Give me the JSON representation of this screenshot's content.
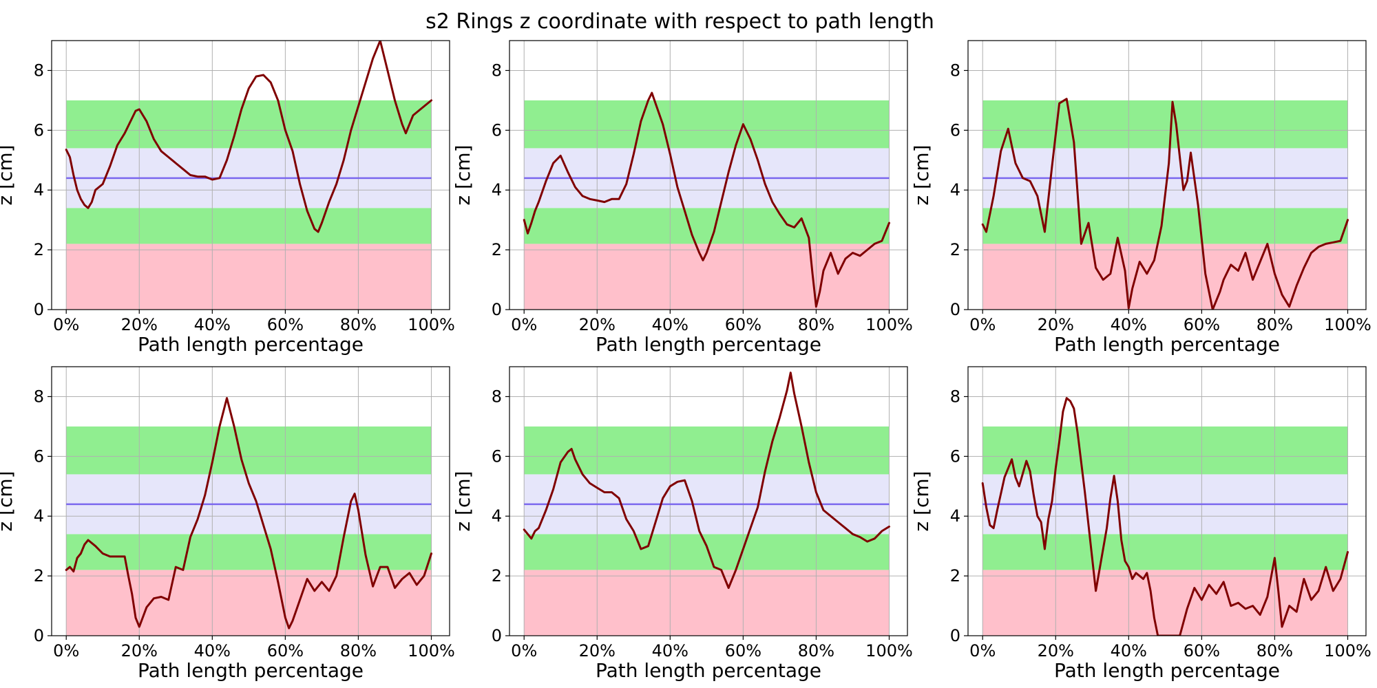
{
  "figure": {
    "title": "s2 Rings z coordinate with respect to path length"
  },
  "colors": {
    "pink_band": "#ffc0cb",
    "green_band": "#90ee90",
    "lavender_band": "#e6e6fa",
    "target_line": "#7b68ee",
    "series_line": "#800000",
    "grid": "#b0b0b0"
  },
  "chart_data": [
    {
      "type": "line",
      "title": "",
      "xlabel": "Path length percentage",
      "ylabel": "z [cm]",
      "xlim": [
        -4,
        105
      ],
      "ylim": [
        0,
        9
      ],
      "x_ticks": [
        "0%",
        "20%",
        "40%",
        "60%",
        "80%",
        "100%"
      ],
      "y_ticks": [
        "0",
        "2",
        "4",
        "6",
        "8"
      ],
      "grid": true,
      "bands": [
        {
          "from": 0,
          "to": 2.2,
          "color": "pink"
        },
        {
          "from": 2.2,
          "to": 3.4,
          "color": "green"
        },
        {
          "from": 3.4,
          "to": 5.4,
          "color": "lavender"
        },
        {
          "from": 5.4,
          "to": 7.0,
          "color": "green"
        }
      ],
      "target_line": 4.4,
      "series": [
        {
          "x": [
            0,
            1,
            2,
            3,
            4,
            5,
            6,
            7,
            8,
            10,
            12,
            14,
            16,
            18,
            19,
            20,
            22,
            24,
            26,
            28,
            30,
            32,
            34,
            36,
            38,
            40,
            42,
            44,
            46,
            48,
            50,
            52,
            54,
            56,
            58,
            60,
            62,
            64,
            66,
            68,
            69,
            70,
            72,
            74,
            76,
            78,
            80,
            82,
            84,
            86,
            88,
            90,
            92,
            93,
            95,
            97,
            100
          ],
          "y": [
            5.35,
            5.1,
            4.5,
            4.0,
            3.7,
            3.5,
            3.4,
            3.6,
            4.0,
            4.2,
            4.8,
            5.5,
            5.9,
            6.4,
            6.65,
            6.7,
            6.3,
            5.7,
            5.3,
            5.1,
            4.9,
            4.7,
            4.5,
            4.45,
            4.45,
            4.35,
            4.4,
            5.0,
            5.8,
            6.7,
            7.4,
            7.8,
            7.85,
            7.6,
            7.0,
            6.0,
            5.3,
            4.2,
            3.3,
            2.7,
            2.6,
            2.9,
            3.6,
            4.2,
            5.0,
            6.0,
            6.8,
            7.6,
            8.4,
            9.0,
            8.0,
            7.0,
            6.2,
            5.9,
            6.5,
            6.7,
            7.0
          ]
        }
      ]
    },
    {
      "type": "line",
      "title": "",
      "xlabel": "Path length percentage",
      "ylabel": "z [cm]",
      "xlim": [
        -4,
        105
      ],
      "ylim": [
        0,
        9
      ],
      "x_ticks": [
        "0%",
        "20%",
        "40%",
        "60%",
        "80%",
        "100%"
      ],
      "y_ticks": [
        "0",
        "2",
        "4",
        "6",
        "8"
      ],
      "grid": true,
      "bands": [
        {
          "from": 0,
          "to": 2.2,
          "color": "pink"
        },
        {
          "from": 2.2,
          "to": 3.4,
          "color": "green"
        },
        {
          "from": 3.4,
          "to": 5.4,
          "color": "lavender"
        },
        {
          "from": 5.4,
          "to": 7.0,
          "color": "green"
        }
      ],
      "target_line": 4.4,
      "series": [
        {
          "x": [
            0,
            1,
            2,
            3,
            4,
            6,
            8,
            10,
            12,
            14,
            16,
            18,
            20,
            22,
            24,
            26,
            28,
            30,
            32,
            34,
            35,
            36,
            38,
            40,
            42,
            44,
            46,
            48,
            49,
            50,
            52,
            54,
            56,
            58,
            60,
            62,
            64,
            66,
            68,
            70,
            72,
            74,
            76,
            78,
            79,
            80,
            81,
            82,
            84,
            86,
            88,
            90,
            92,
            94,
            96,
            98,
            100
          ],
          "y": [
            3.0,
            2.55,
            2.9,
            3.3,
            3.6,
            4.3,
            4.9,
            5.15,
            4.6,
            4.1,
            3.8,
            3.7,
            3.65,
            3.6,
            3.7,
            3.7,
            4.2,
            5.2,
            6.3,
            7.0,
            7.25,
            6.9,
            6.2,
            5.2,
            4.1,
            3.3,
            2.5,
            1.9,
            1.65,
            1.9,
            2.6,
            3.6,
            4.6,
            5.5,
            6.2,
            5.7,
            5.0,
            4.2,
            3.6,
            3.2,
            2.85,
            2.75,
            3.05,
            2.4,
            1.2,
            0.1,
            0.6,
            1.3,
            1.9,
            1.2,
            1.7,
            1.9,
            1.8,
            2.0,
            2.2,
            2.3,
            2.9
          ]
        }
      ]
    },
    {
      "type": "line",
      "title": "",
      "xlabel": "Path length percentage",
      "ylabel": "z [cm]",
      "xlim": [
        -4,
        105
      ],
      "ylim": [
        0,
        9
      ],
      "x_ticks": [
        "0%",
        "20%",
        "40%",
        "60%",
        "80%",
        "100%"
      ],
      "y_ticks": [
        "0",
        "2",
        "4",
        "6",
        "8"
      ],
      "grid": true,
      "bands": [
        {
          "from": 0,
          "to": 2.2,
          "color": "pink"
        },
        {
          "from": 2.2,
          "to": 3.4,
          "color": "green"
        },
        {
          "from": 3.4,
          "to": 5.4,
          "color": "lavender"
        },
        {
          "from": 5.4,
          "to": 7.0,
          "color": "green"
        }
      ],
      "target_line": 4.4,
      "series": [
        {
          "x": [
            0,
            1,
            2,
            3,
            5,
            7,
            9,
            11,
            13,
            15,
            17,
            19,
            21,
            23,
            25,
            27,
            29,
            31,
            33,
            35,
            37,
            39,
            40,
            41,
            43,
            45,
            47,
            49,
            51,
            52,
            53,
            55,
            56,
            57,
            59,
            61,
            63,
            65,
            66,
            68,
            70,
            72,
            74,
            76,
            78,
            80,
            82,
            84,
            86,
            88,
            90,
            92,
            94,
            96,
            98,
            100
          ],
          "y": [
            2.85,
            2.6,
            3.2,
            3.8,
            5.3,
            6.05,
            4.9,
            4.4,
            4.3,
            3.8,
            2.6,
            4.8,
            6.9,
            7.05,
            5.6,
            2.2,
            2.9,
            1.4,
            1.0,
            1.2,
            2.4,
            1.3,
            0.05,
            0.7,
            1.6,
            1.2,
            1.65,
            2.8,
            4.9,
            6.95,
            6.2,
            4.0,
            4.3,
            5.25,
            3.5,
            1.2,
            0.0,
            0.6,
            1.0,
            1.5,
            1.3,
            1.9,
            1.0,
            1.6,
            2.2,
            1.2,
            0.5,
            0.1,
            0.8,
            1.4,
            1.9,
            2.1,
            2.2,
            2.25,
            2.3,
            3.0
          ]
        }
      ]
    },
    {
      "type": "line",
      "title": "",
      "xlabel": "Path length percentage",
      "ylabel": "z [cm]",
      "xlim": [
        -4,
        105
      ],
      "ylim": [
        0,
        9
      ],
      "x_ticks": [
        "0%",
        "20%",
        "40%",
        "60%",
        "80%",
        "100%"
      ],
      "y_ticks": [
        "0",
        "2",
        "4",
        "6",
        "8"
      ],
      "grid": true,
      "bands": [
        {
          "from": 0,
          "to": 2.2,
          "color": "pink"
        },
        {
          "from": 2.2,
          "to": 3.4,
          "color": "green"
        },
        {
          "from": 3.4,
          "to": 5.4,
          "color": "lavender"
        },
        {
          "from": 5.4,
          "to": 7.0,
          "color": "green"
        }
      ],
      "target_line": 4.4,
      "series": [
        {
          "x": [
            0,
            1,
            2,
            3,
            4,
            5,
            6,
            8,
            10,
            12,
            14,
            15,
            16,
            17,
            18,
            19,
            20,
            22,
            24,
            26,
            28,
            30,
            32,
            34,
            36,
            38,
            40,
            42,
            44,
            46,
            48,
            50,
            52,
            54,
            56,
            58,
            60,
            61,
            62,
            64,
            66,
            68,
            70,
            72,
            74,
            76,
            78,
            79,
            80,
            82,
            84,
            86,
            88,
            90,
            92,
            94,
            96,
            98,
            100
          ],
          "y": [
            2.2,
            2.3,
            2.15,
            2.6,
            2.75,
            3.05,
            3.2,
            3.0,
            2.75,
            2.65,
            2.65,
            2.65,
            2.65,
            2.0,
            1.4,
            0.6,
            0.3,
            0.95,
            1.25,
            1.3,
            1.2,
            2.3,
            2.2,
            3.3,
            3.9,
            4.7,
            5.8,
            7.0,
            7.95,
            7.0,
            5.9,
            5.1,
            4.5,
            3.7,
            2.9,
            1.8,
            0.6,
            0.25,
            0.5,
            1.2,
            1.9,
            1.5,
            1.8,
            1.5,
            2.0,
            3.3,
            4.5,
            4.75,
            4.2,
            2.7,
            1.65,
            2.3,
            2.3,
            1.6,
            1.9,
            2.1,
            1.7,
            2.0,
            2.75
          ]
        }
      ]
    },
    {
      "type": "line",
      "title": "",
      "xlabel": "Path length percentage",
      "ylabel": "z [cm]",
      "xlim": [
        -4,
        105
      ],
      "ylim": [
        0,
        9
      ],
      "x_ticks": [
        "0%",
        "20%",
        "40%",
        "60%",
        "80%",
        "100%"
      ],
      "y_ticks": [
        "0",
        "2",
        "4",
        "6",
        "8"
      ],
      "grid": true,
      "bands": [
        {
          "from": 0,
          "to": 2.2,
          "color": "pink"
        },
        {
          "from": 2.2,
          "to": 3.4,
          "color": "green"
        },
        {
          "from": 3.4,
          "to": 5.4,
          "color": "lavender"
        },
        {
          "from": 5.4,
          "to": 7.0,
          "color": "green"
        }
      ],
      "target_line": 4.4,
      "series": [
        {
          "x": [
            0,
            1,
            2,
            3,
            4,
            6,
            8,
            10,
            12,
            13,
            14,
            16,
            18,
            20,
            22,
            24,
            26,
            28,
            30,
            32,
            34,
            36,
            38,
            40,
            42,
            44,
            46,
            48,
            50,
            52,
            54,
            55,
            56,
            58,
            60,
            62,
            64,
            66,
            68,
            70,
            72,
            73,
            74,
            76,
            78,
            80,
            82,
            84,
            86,
            88,
            90,
            92,
            94,
            96,
            98,
            100
          ],
          "y": [
            3.55,
            3.4,
            3.25,
            3.5,
            3.6,
            4.2,
            4.9,
            5.8,
            6.15,
            6.25,
            5.9,
            5.4,
            5.1,
            4.95,
            4.8,
            4.8,
            4.6,
            3.9,
            3.5,
            2.9,
            3.0,
            3.8,
            4.6,
            5.0,
            5.15,
            5.2,
            4.5,
            3.5,
            3.0,
            2.3,
            2.2,
            1.9,
            1.6,
            2.2,
            2.9,
            3.6,
            4.3,
            5.5,
            6.5,
            7.3,
            8.2,
            8.8,
            8.1,
            7.0,
            5.8,
            4.8,
            4.2,
            4.0,
            3.8,
            3.6,
            3.4,
            3.3,
            3.15,
            3.25,
            3.5,
            3.65
          ]
        }
      ]
    },
    {
      "type": "line",
      "title": "",
      "xlabel": "Path length percentage",
      "ylabel": "z [cm]",
      "xlim": [
        -4,
        105
      ],
      "ylim": [
        0,
        9
      ],
      "x_ticks": [
        "0%",
        "20%",
        "40%",
        "60%",
        "80%",
        "100%"
      ],
      "y_ticks": [
        "0",
        "2",
        "4",
        "6",
        "8"
      ],
      "grid": true,
      "bands": [
        {
          "from": 0,
          "to": 2.2,
          "color": "pink"
        },
        {
          "from": 2.2,
          "to": 3.4,
          "color": "green"
        },
        {
          "from": 3.4,
          "to": 5.4,
          "color": "lavender"
        },
        {
          "from": 5.4,
          "to": 7.0,
          "color": "green"
        }
      ],
      "target_line": 4.4,
      "series": [
        {
          "x": [
            0,
            1,
            2,
            3,
            4,
            6,
            8,
            9,
            10,
            12,
            13,
            14,
            15,
            16,
            17,
            18,
            19,
            20,
            21,
            22,
            23,
            24,
            25,
            26,
            28,
            30,
            31,
            32,
            33,
            34,
            35,
            36,
            37,
            38,
            39,
            40,
            41,
            42,
            43,
            44,
            45,
            46,
            47,
            48,
            49,
            50,
            52,
            54,
            56,
            58,
            60,
            62,
            64,
            66,
            68,
            70,
            72,
            74,
            76,
            78,
            80,
            81,
            82,
            84,
            86,
            88,
            90,
            92,
            94,
            96,
            98,
            100
          ],
          "y": [
            5.1,
            4.3,
            3.7,
            3.6,
            4.2,
            5.3,
            5.9,
            5.3,
            5.0,
            5.85,
            5.5,
            4.7,
            4.0,
            3.8,
            2.9,
            3.9,
            4.5,
            5.6,
            6.5,
            7.5,
            7.95,
            7.85,
            7.6,
            6.8,
            4.8,
            2.6,
            1.5,
            2.2,
            2.9,
            3.6,
            4.6,
            5.35,
            4.5,
            3.2,
            2.5,
            2.3,
            1.9,
            2.1,
            2.0,
            1.9,
            2.1,
            1.5,
            0.6,
            0.0,
            0.0,
            0.0,
            0.0,
            0.0,
            0.9,
            1.6,
            1.2,
            1.7,
            1.4,
            1.8,
            1.0,
            1.1,
            0.9,
            1.0,
            0.7,
            1.3,
            2.6,
            1.5,
            0.3,
            1.0,
            0.8,
            1.9,
            1.2,
            1.5,
            2.3,
            1.5,
            1.9,
            2.8
          ]
        }
      ]
    }
  ]
}
